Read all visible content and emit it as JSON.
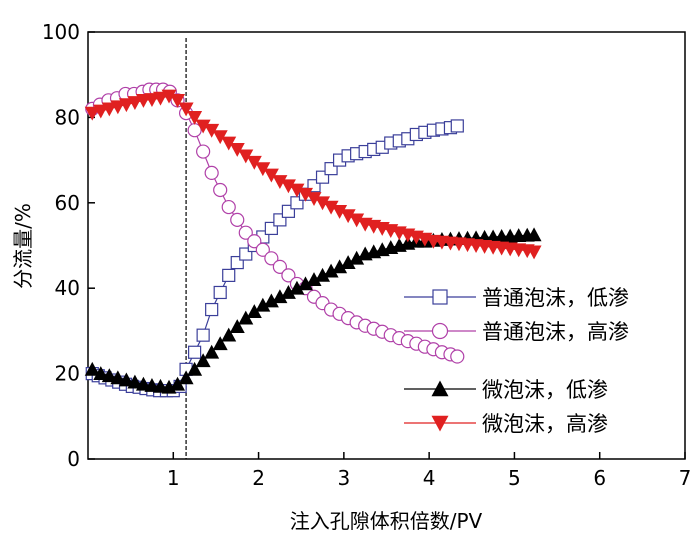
{
  "chart_data": {
    "type": "line",
    "title": "",
    "xlabel": "注入孔隙体积倍数/PV",
    "ylabel": "分流量/%",
    "xlim": [
      0,
      7
    ],
    "ylim": [
      0,
      100
    ],
    "xticks": [
      1,
      2,
      3,
      4,
      5,
      6,
      7
    ],
    "yticks": [
      0,
      20,
      40,
      60,
      80,
      100
    ],
    "grid": false,
    "legend_position": "right",
    "vline_x": 1.15,
    "series": [
      {
        "name": "普通泡沫，低渗",
        "marker": "square-open",
        "color": "#3b3f9a",
        "x": [
          0.05,
          0.12,
          0.2,
          0.28,
          0.36,
          0.44,
          0.52,
          0.6,
          0.68,
          0.76,
          0.84,
          0.92,
          1.0,
          1.08,
          1.15,
          1.25,
          1.35,
          1.45,
          1.55,
          1.65,
          1.75,
          1.85,
          1.95,
          2.05,
          2.15,
          2.25,
          2.35,
          2.45,
          2.55,
          2.65,
          2.75,
          2.85,
          2.95,
          3.05,
          3.15,
          3.25,
          3.35,
          3.45,
          3.55,
          3.65,
          3.75,
          3.85,
          3.95,
          4.05,
          4.15,
          4.25,
          4.33
        ],
        "y": [
          20,
          19.5,
          19,
          18.5,
          18,
          17.5,
          17,
          16.8,
          16.5,
          16.2,
          16,
          16,
          16,
          17,
          21,
          25,
          29,
          35,
          39,
          43,
          46,
          48,
          50,
          52,
          54,
          56,
          58,
          60,
          62,
          64,
          66,
          68,
          70,
          71,
          71.5,
          72,
          72.5,
          73,
          74,
          74.5,
          75,
          76,
          76.5,
          77,
          77.3,
          77.6,
          78
        ]
      },
      {
        "name": "普通泡沫，高渗",
        "marker": "circle-open",
        "color": "#b040a8",
        "x": [
          0.05,
          0.14,
          0.24,
          0.34,
          0.44,
          0.54,
          0.64,
          0.72,
          0.8,
          0.88,
          0.96,
          1.05,
          1.15,
          1.25,
          1.35,
          1.45,
          1.55,
          1.65,
          1.75,
          1.85,
          1.95,
          2.05,
          2.15,
          2.25,
          2.35,
          2.45,
          2.55,
          2.65,
          2.75,
          2.85,
          2.95,
          3.05,
          3.15,
          3.25,
          3.35,
          3.45,
          3.55,
          3.65,
          3.75,
          3.85,
          3.95,
          4.05,
          4.15,
          4.25,
          4.33
        ],
        "y": [
          82,
          83,
          84,
          84.5,
          85.5,
          85.5,
          86,
          86.5,
          86.5,
          86.5,
          86,
          84,
          81,
          77,
          72,
          67,
          63,
          59,
          56,
          53,
          51,
          49,
          47,
          45,
          43,
          41,
          40,
          38,
          36.5,
          35,
          34,
          33,
          32,
          31.2,
          30.5,
          29.8,
          29,
          28.3,
          27.6,
          27,
          26.3,
          25.7,
          25,
          24.5,
          24
        ]
      },
      {
        "name": "微泡沫，低渗",
        "marker": "triangle-up-filled",
        "color": "#000000",
        "x": [
          0.05,
          0.15,
          0.25,
          0.35,
          0.45,
          0.55,
          0.65,
          0.75,
          0.85,
          0.95,
          1.05,
          1.15,
          1.25,
          1.35,
          1.45,
          1.55,
          1.65,
          1.75,
          1.85,
          1.95,
          2.05,
          2.15,
          2.25,
          2.35,
          2.45,
          2.55,
          2.65,
          2.75,
          2.85,
          2.95,
          3.05,
          3.15,
          3.25,
          3.35,
          3.45,
          3.55,
          3.65,
          3.75,
          3.85,
          3.95,
          4.05,
          4.15,
          4.25,
          4.35,
          4.45,
          4.55,
          4.65,
          4.75,
          4.85,
          4.95,
          5.05,
          5.15,
          5.23
        ],
        "y": [
          21,
          20,
          19.5,
          19,
          18.5,
          18,
          17.5,
          17.2,
          17,
          16.8,
          17.5,
          19,
          21,
          23,
          25,
          27,
          29,
          31,
          33,
          34.5,
          36,
          37,
          38,
          39,
          40,
          41,
          42,
          43,
          44,
          45,
          46,
          47,
          48,
          48.5,
          49,
          49.5,
          50,
          50.5,
          51,
          51,
          51.2,
          51.4,
          51.5,
          51.6,
          51.7,
          51.8,
          51.9,
          52,
          52.1,
          52.2,
          52.3,
          52.4,
          52.5
        ]
      },
      {
        "name": "微泡沫，高渗",
        "marker": "triangle-down-filled",
        "color": "#e02020",
        "x": [
          0.05,
          0.15,
          0.25,
          0.35,
          0.45,
          0.55,
          0.65,
          0.75,
          0.85,
          0.95,
          1.05,
          1.15,
          1.25,
          1.35,
          1.45,
          1.55,
          1.65,
          1.75,
          1.85,
          1.95,
          2.05,
          2.15,
          2.25,
          2.35,
          2.45,
          2.55,
          2.65,
          2.75,
          2.85,
          2.95,
          3.05,
          3.15,
          3.25,
          3.35,
          3.45,
          3.55,
          3.65,
          3.75,
          3.85,
          3.95,
          4.05,
          4.15,
          4.25,
          4.35,
          4.45,
          4.55,
          4.65,
          4.75,
          4.85,
          4.95,
          5.05,
          5.15,
          5.23
        ],
        "y": [
          81,
          81.5,
          82,
          82.5,
          83,
          83.5,
          84,
          84.2,
          84.5,
          85,
          84,
          82,
          80,
          78,
          77,
          75.5,
          74,
          72.5,
          71,
          69.5,
          68,
          66.5,
          65,
          64,
          63,
          62,
          61,
          60,
          59,
          58,
          57,
          56,
          55,
          54.5,
          54,
          53.5,
          53,
          52.5,
          52,
          51.5,
          51,
          50.8,
          50.6,
          50.4,
          50.2,
          50,
          49.8,
          49.6,
          49.4,
          49.2,
          49,
          48.8,
          48.5
        ]
      }
    ]
  }
}
